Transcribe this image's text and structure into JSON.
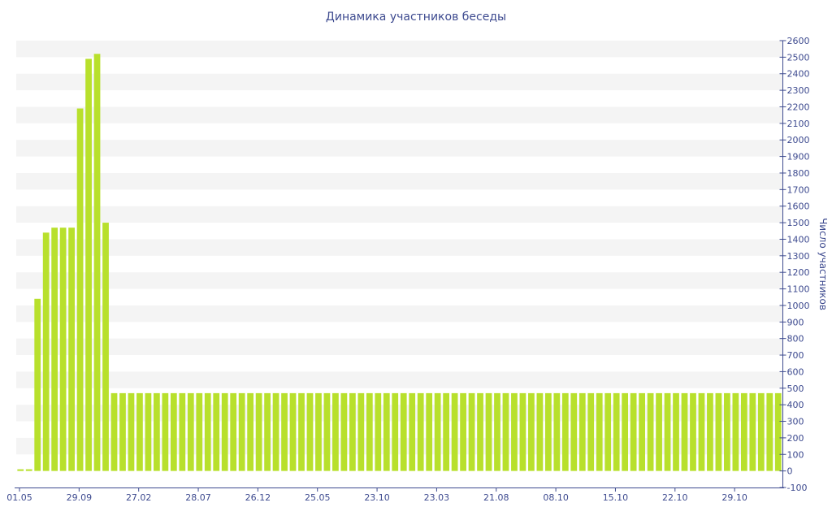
{
  "colors": {
    "bar": "#b8e02c",
    "axis": "#3d4a8f",
    "band": "#f4f4f4"
  },
  "chart_data": {
    "type": "bar",
    "title": "Динамика участников беседы",
    "xlabel": "",
    "ylabel": "Число участников",
    "ylim": [
      -100,
      2600
    ],
    "yticks": [
      -100,
      0,
      100,
      200,
      300,
      400,
      500,
      600,
      700,
      800,
      900,
      1000,
      1100,
      1200,
      1300,
      1400,
      1500,
      1600,
      1700,
      1800,
      1900,
      2000,
      2100,
      2200,
      2300,
      2400,
      2500,
      2600
    ],
    "y_axis_side": "right",
    "grid": "alternating horizontal bands",
    "x_tick_labels": [
      {
        "label": "01.05",
        "index": 0
      },
      {
        "label": "29.09",
        "index": 7
      },
      {
        "label": "27.02",
        "index": 14
      },
      {
        "label": "28.07",
        "index": 21
      },
      {
        "label": "26.12",
        "index": 28
      },
      {
        "label": "25.05",
        "index": 35
      },
      {
        "label": "23.10",
        "index": 42
      },
      {
        "label": "23.03",
        "index": 49
      },
      {
        "label": "21.08",
        "index": 56
      },
      {
        "label": "08.10",
        "index": 63
      },
      {
        "label": "15.10",
        "index": 70
      },
      {
        "label": "22.10",
        "index": 77
      },
      {
        "label": "29.10",
        "index": 84
      }
    ],
    "series": [
      {
        "values": [
          10,
          10,
          1040,
          1440,
          1470,
          1470,
          1470,
          2190,
          2490,
          2520,
          1500,
          470,
          470,
          470,
          470,
          470,
          470,
          470,
          470,
          470,
          470,
          470,
          470,
          470,
          470,
          470,
          470,
          470,
          470,
          470,
          470,
          470,
          470,
          470,
          470,
          470,
          470,
          470,
          470,
          470,
          470,
          470,
          470,
          470,
          470,
          470,
          470,
          470,
          470,
          470,
          470,
          470,
          470,
          470,
          470,
          470,
          470,
          470,
          470,
          470,
          470,
          470,
          470,
          470,
          470,
          470,
          470,
          470,
          470,
          470,
          470,
          470,
          470,
          470,
          470,
          470,
          470,
          470,
          470,
          470,
          470,
          470,
          470,
          470,
          470,
          470,
          470,
          470,
          470,
          470
        ]
      }
    ]
  }
}
